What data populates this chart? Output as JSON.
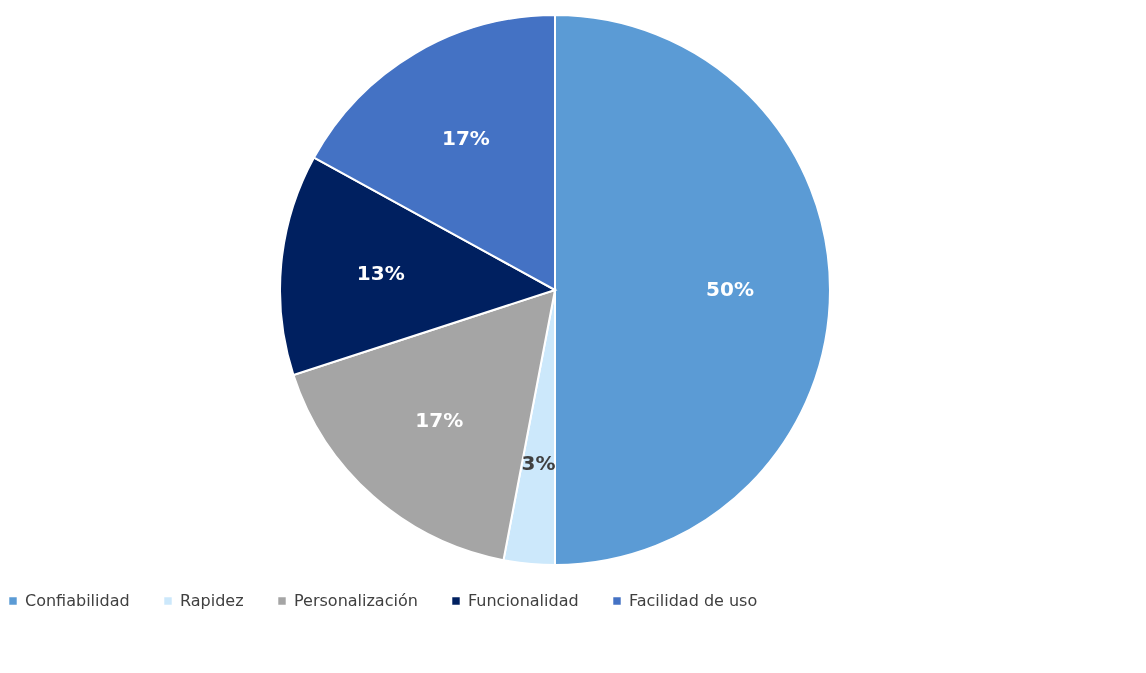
{
  "chart_data": {
    "type": "pie",
    "categories": [
      "Confiabilidad",
      "Rapidez",
      "Personalización",
      "Funcionalidad",
      "Facilidad de uso"
    ],
    "values": [
      50,
      3,
      17,
      13,
      17
    ],
    "colors": [
      "#5b9bd5",
      "#cce8fb",
      "#a5a5a5",
      "#002060",
      "#4472c4"
    ],
    "value_labels": [
      "50%",
      "3%",
      "17%",
      "13%",
      "17%"
    ],
    "legend": "bottom"
  }
}
